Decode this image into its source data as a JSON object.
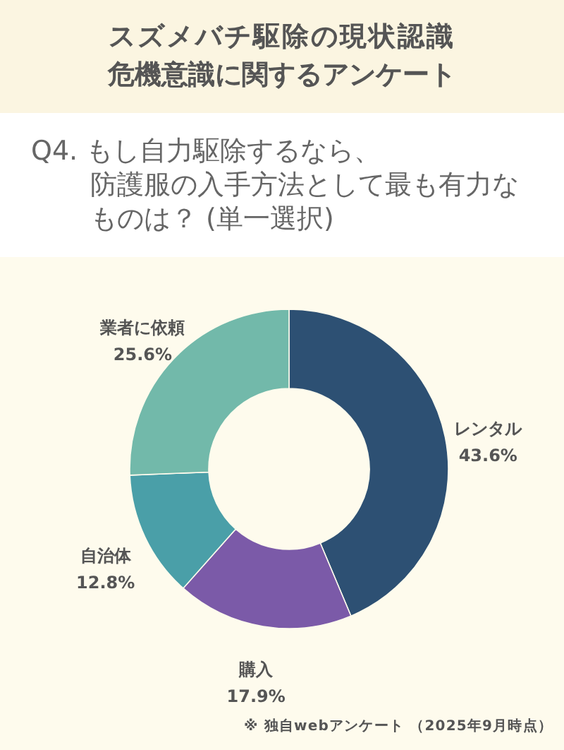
{
  "chart_data": {
    "type": "donut",
    "title": "スズメバチ駆除の現状認識危機意識に関するアンケート",
    "subtitle": "Q4. もし自力駆除するなら、防護服の入手方法として最も有力なものは？ (単一選択)",
    "categories": [
      "レンタル",
      "購入",
      "自治体",
      "業者に依頼"
    ],
    "values": [
      43.6,
      17.9,
      12.8,
      25.6
    ],
    "value_labels": [
      "43.6%",
      "17.9%",
      "12.8%",
      "25.6%"
    ],
    "colors": [
      "#2d5073",
      "#7b5aa8",
      "#4a9fa8",
      "#72b9aa"
    ],
    "annotations": [
      "※ 独自webアンケート （2025年9月時点）"
    ]
  }
}
